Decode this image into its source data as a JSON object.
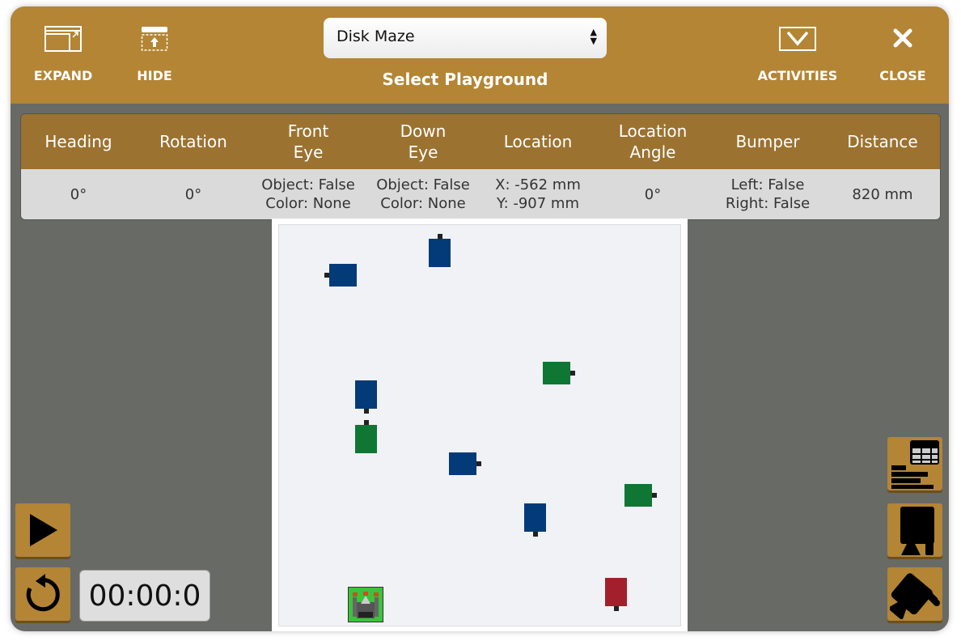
{
  "header": {
    "expand_label": "EXPAND",
    "hide_label": "HIDE",
    "activities_label": "ACTIVITIES",
    "close_label": "CLOSE",
    "playground_select": {
      "value": "Disk Maze",
      "label": "Select Playground"
    }
  },
  "sensor_table": {
    "headers": [
      "Heading",
      "Rotation",
      "Front\nEye",
      "Down\nEye",
      "Location",
      "Location\nAngle",
      "Bumper",
      "Distance"
    ],
    "values": [
      [
        "0°"
      ],
      [
        "0°"
      ],
      [
        "Object: False",
        "Color: None"
      ],
      [
        "Object: False",
        "Color: None"
      ],
      [
        "X: -562 mm",
        "Y: -907 mm"
      ],
      [
        "0°"
      ],
      [
        "Left: False",
        "Right: False"
      ],
      [
        "820 mm"
      ]
    ]
  },
  "controls": {
    "timer": "00:00:0",
    "play_icon": "play-icon",
    "reset_icon": "reset-icon"
  },
  "side_tools": [
    "data-table-icon",
    "robot-side-view-icon",
    "robot-top-view-icon"
  ],
  "colors": {
    "header": "#b38535",
    "table_header": "#9b7230",
    "disk_blue": "#033b78",
    "disk_green": "#0f7634",
    "disk_red": "#a31f2c",
    "robot_green": "#3ac43a"
  }
}
